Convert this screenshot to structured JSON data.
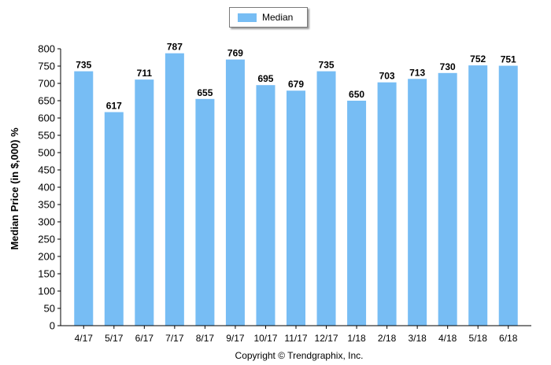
{
  "legend": {
    "label": "Median",
    "color": "#77bdf4"
  },
  "copyright": "Copyright © Trendgraphix, Inc.",
  "chart_data": {
    "type": "bar",
    "title": "",
    "xlabel": "",
    "ylabel": "Median Price (in $,000) %",
    "ylim": [
      0,
      800
    ],
    "ytick_step": 50,
    "grid": false,
    "legend_position": "top-center",
    "categories": [
      "4/17",
      "5/17",
      "6/17",
      "7/17",
      "8/17",
      "9/17",
      "10/17",
      "11/17",
      "12/17",
      "1/18",
      "2/18",
      "3/18",
      "4/18",
      "5/18",
      "6/18"
    ],
    "series": [
      {
        "name": "Median",
        "color": "#77bdf4",
        "values": [
          735,
          617,
          711,
          787,
          655,
          769,
          695,
          679,
          735,
          650,
          703,
          713,
          730,
          752,
          751
        ]
      }
    ]
  }
}
